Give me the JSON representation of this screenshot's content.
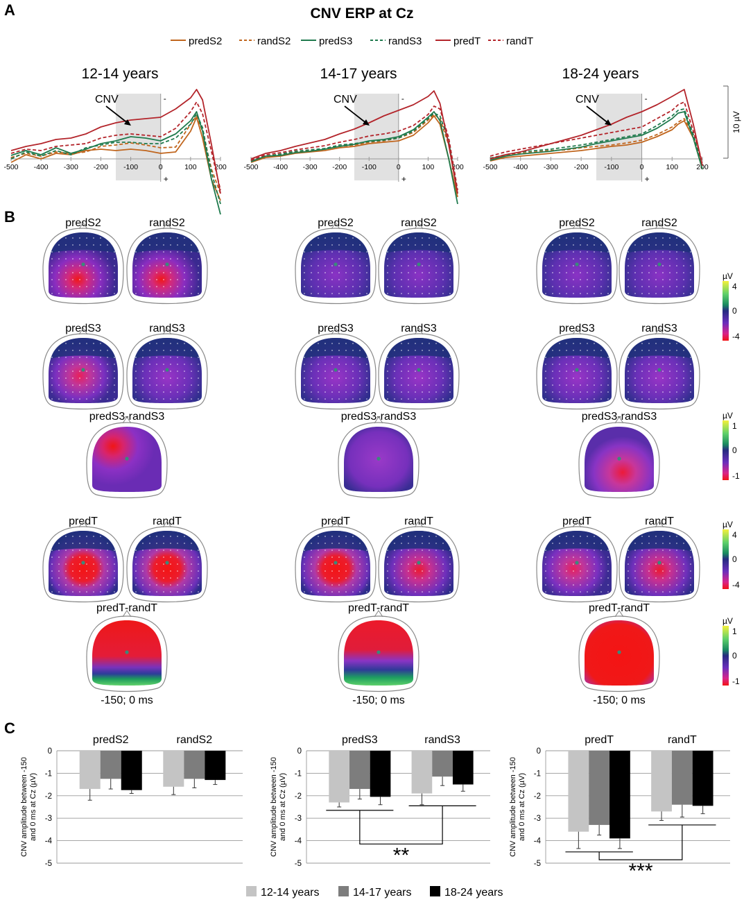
{
  "panel_labels": {
    "a": "A",
    "b": "B",
    "c": "C"
  },
  "colors": {
    "predS2": "#c0651d",
    "randS2": "#c0651d",
    "predS3": "#1f7a4d",
    "randS3": "#1f7a4d",
    "predT": "#b3242a",
    "randT": "#b3242a",
    "bar12": "#c4c4c4",
    "bar14": "#7d7d7d",
    "bar18": "#000000",
    "cnv_window": "#e1e1e1"
  },
  "panelA": {
    "title": "CNV ERP at Cz",
    "legend": [
      {
        "key": "predS2",
        "label": "predS2",
        "dashed": false
      },
      {
        "key": "randS2",
        "label": "randS2",
        "dashed": true
      },
      {
        "key": "predS3",
        "label": "predS3",
        "dashed": false
      },
      {
        "key": "randS3",
        "label": "randS3",
        "dashed": true
      },
      {
        "key": "predT",
        "label": "predT",
        "dashed": false
      },
      {
        "key": "randT",
        "label": "randT",
        "dashed": true
      }
    ],
    "cnv_label": "CNV",
    "minus_sign": "-",
    "plus_sign": "+",
    "scale_bar_label": "10 µV",
    "chart_data": [
      {
        "type": "line",
        "title": "12-14 years",
        "xlabel": "",
        "ylabel": "",
        "xlim": [
          -500,
          200
        ],
        "ylim": [
          -9,
          11
        ],
        "x_ticks": [
          -500,
          -400,
          -300,
          -200,
          -100,
          0,
          100,
          200
        ],
        "cnv_window": [
          -150,
          0
        ],
        "x": [
          -500,
          -450,
          -400,
          -350,
          -300,
          -250,
          -200,
          -150,
          -100,
          -50,
          0,
          50,
          100,
          120,
          140,
          170,
          200
        ],
        "series": [
          {
            "name": "predS2",
            "values": [
              -0.5,
              0.6,
              0.0,
              0.8,
              0.6,
              1.2,
              1.4,
              1.2,
              1.4,
              1.2,
              0.8,
              1.0,
              4.0,
              6.0,
              3.0,
              -3.0,
              -6.0
            ]
          },
          {
            "name": "randS2",
            "values": [
              0.2,
              0.8,
              0.4,
              1.0,
              0.8,
              1.0,
              1.8,
              2.0,
              2.3,
              2.0,
              1.6,
              1.7,
              5.0,
              6.2,
              4.0,
              -1.5,
              -5.0
            ]
          },
          {
            "name": "predS3",
            "values": [
              0.5,
              1.2,
              0.6,
              1.6,
              0.8,
              1.4,
              2.2,
              2.6,
              3.2,
              3.0,
              2.6,
              3.6,
              5.5,
              6.8,
              4.0,
              -3.0,
              -8.0
            ]
          },
          {
            "name": "randS3",
            "values": [
              0.0,
              1.0,
              0.4,
              1.2,
              0.6,
              1.6,
              2.0,
              2.4,
              2.4,
              2.2,
              2.2,
              3.0,
              5.0,
              6.5,
              4.5,
              -2.0,
              -6.5
            ]
          },
          {
            "name": "predT",
            "values": [
              1.2,
              1.8,
              2.2,
              2.8,
              3.0,
              3.6,
              4.6,
              5.2,
              5.6,
              5.8,
              6.0,
              7.2,
              8.8,
              10.0,
              8.5,
              2.0,
              -5.0
            ]
          },
          {
            "name": "randT",
            "values": [
              0.8,
              1.4,
              1.2,
              1.8,
              2.0,
              2.2,
              3.0,
              3.4,
              3.6,
              3.4,
              3.2,
              4.4,
              6.8,
              8.2,
              6.5,
              1.0,
              -4.5
            ]
          }
        ]
      },
      {
        "type": "line",
        "title": "14-17 years",
        "xlabel": "",
        "ylabel": "",
        "xlim": [
          -500,
          200
        ],
        "ylim": [
          -9,
          11
        ],
        "x_ticks": [
          -500,
          -400,
          -300,
          -200,
          -100,
          0,
          100,
          200
        ],
        "cnv_window": [
          -150,
          0
        ],
        "x": [
          -500,
          -450,
          -400,
          -350,
          -300,
          -250,
          -200,
          -150,
          -100,
          -50,
          0,
          50,
          100,
          120,
          140,
          170,
          200
        ],
        "series": [
          {
            "name": "predS2",
            "values": [
              -0.5,
              0.2,
              0.4,
              0.8,
              1.0,
              1.2,
              1.6,
              1.8,
              2.2,
              2.4,
              2.6,
              3.4,
              5.2,
              6.2,
              5.0,
              0.0,
              -5.5
            ]
          },
          {
            "name": "randS2",
            "values": [
              -0.3,
              0.3,
              0.6,
              1.0,
              1.2,
              1.4,
              1.8,
              2.0,
              2.4,
              2.6,
              3.0,
              3.8,
              5.6,
              6.4,
              5.8,
              2.0,
              -5.0
            ]
          },
          {
            "name": "predS3",
            "values": [
              -0.4,
              0.4,
              0.5,
              0.9,
              1.1,
              1.4,
              1.8,
              2.1,
              2.6,
              2.8,
              3.2,
              4.2,
              6.0,
              6.8,
              5.5,
              0.0,
              -6.5
            ]
          },
          {
            "name": "randS3",
            "values": [
              -0.2,
              0.4,
              0.7,
              1.1,
              1.3,
              1.5,
              2.0,
              2.2,
              2.5,
              2.7,
              3.0,
              4.0,
              5.8,
              6.6,
              6.2,
              2.5,
              -5.0
            ]
          },
          {
            "name": "predT",
            "values": [
              0.0,
              0.8,
              1.2,
              1.8,
              2.3,
              2.8,
              3.6,
              4.3,
              5.2,
              6.2,
              7.0,
              7.8,
              9.0,
              9.8,
              8.0,
              2.0,
              -5.0
            ]
          },
          {
            "name": "randT",
            "values": [
              -0.2,
              0.6,
              0.9,
              1.3,
              1.6,
              1.9,
              2.4,
              2.8,
              3.3,
              3.6,
              4.0,
              4.8,
              6.4,
              7.6,
              7.2,
              3.0,
              -4.5
            ]
          }
        ]
      },
      {
        "type": "line",
        "title": "18-24 years",
        "xlabel": "",
        "ylabel": "",
        "xlim": [
          -500,
          200
        ],
        "ylim": [
          -9,
          11
        ],
        "x_ticks": [
          -500,
          -400,
          -300,
          -200,
          -100,
          0,
          100,
          200
        ],
        "cnv_window": [
          -150,
          0
        ],
        "x": [
          -500,
          -450,
          -400,
          -350,
          -300,
          -250,
          -200,
          -150,
          -100,
          -50,
          0,
          50,
          100,
          120,
          140,
          170,
          200
        ],
        "series": [
          {
            "name": "predS2",
            "values": [
              -0.3,
              0.2,
              0.4,
              0.6,
              0.8,
              1.0,
              1.2,
              1.5,
              1.8,
              2.0,
              2.4,
              3.2,
              4.2,
              5.0,
              5.5,
              3.0,
              -1.5
            ]
          },
          {
            "name": "randS2",
            "values": [
              0.0,
              0.5,
              0.8,
              1.0,
              1.2,
              1.3,
              1.6,
              1.8,
              2.0,
              2.3,
              2.7,
              3.5,
              4.6,
              5.3,
              5.8,
              3.5,
              -1.0
            ]
          },
          {
            "name": "predS3",
            "values": [
              -0.2,
              0.4,
              0.7,
              0.9,
              1.1,
              1.4,
              1.7,
              2.2,
              2.6,
              3.0,
              3.4,
              4.4,
              5.8,
              6.6,
              6.8,
              3.0,
              -1.5
            ]
          },
          {
            "name": "randS3",
            "values": [
              0.1,
              0.6,
              1.0,
              1.2,
              1.4,
              1.7,
              2.0,
              2.4,
              2.8,
              3.2,
              3.6,
              4.8,
              6.2,
              7.0,
              7.2,
              3.5,
              -1.0
            ]
          },
          {
            "name": "predT",
            "values": [
              0.0,
              0.6,
              1.0,
              1.6,
              2.2,
              2.8,
              3.4,
              4.2,
              5.0,
              6.0,
              6.8,
              7.8,
              9.0,
              9.5,
              10.0,
              5.0,
              -1.0
            ]
          },
          {
            "name": "randT",
            "values": [
              0.4,
              1.0,
              1.4,
              1.8,
              2.2,
              2.6,
              3.0,
              3.4,
              3.8,
              4.2,
              4.6,
              5.8,
              7.0,
              7.8,
              8.2,
              4.0,
              -0.5
            ]
          }
        ]
      }
    ]
  },
  "panelB": {
    "groups": [
      {
        "pair1": [
          "predS2",
          "randS2"
        ],
        "pair2": [
          "predS3",
          "randS3"
        ],
        "diff1": "predS3-randS3",
        "pair3": [
          "predT",
          "randT"
        ],
        "diff2": "predT-randT",
        "window": "-150; 0 ms",
        "maps": {
          "predS2": "posterior-strong",
          "randS2": "posterior-strong",
          "predS3": "central-strong",
          "randS3": "central-weak",
          "diff1": "left-frontal",
          "predT": "central-broad",
          "randT": "central-broad",
          "diff2": "diff-broad-green"
        }
      },
      {
        "pair1": [
          "predS2",
          "randS2"
        ],
        "pair2": [
          "predS3",
          "randS3"
        ],
        "diff1": "predS3-randS3",
        "pair3": [
          "predT",
          "randT"
        ],
        "diff2": "predT-randT",
        "window": "-150; 0 ms",
        "maps": {
          "predS2": "weak",
          "randS2": "weak",
          "predS3": "central-weak",
          "randS3": "central-weak",
          "diff1": "diffuse",
          "predT": "central-broad",
          "randT": "central-medium",
          "diff2": "diff-frontal-green"
        }
      },
      {
        "pair1": [
          "predS2",
          "randS2"
        ],
        "pair2": [
          "predS3",
          "randS3"
        ],
        "diff1": "predS3-randS3",
        "pair3": [
          "predT",
          "randT"
        ],
        "diff2": "predT-randT",
        "window": "-150; 0 ms",
        "maps": {
          "predS2": "weak",
          "randS2": "weak",
          "predS3": "central-weak",
          "randS3": "central-weak",
          "diff1": "posterior-red",
          "predT": "central-strong",
          "randT": "central-medium",
          "diff2": "diff-all-red"
        }
      }
    ],
    "colorbars": [
      {
        "unit": "µV",
        "ticks": [
          "4",
          "0",
          "-4"
        ]
      },
      {
        "unit": "µV",
        "ticks": [
          "1",
          "0",
          "-1"
        ]
      },
      {
        "unit": "µV",
        "ticks": [
          "4",
          "0",
          "-4"
        ]
      },
      {
        "unit": "µV",
        "ticks": [
          "1",
          "0",
          "-1"
        ]
      }
    ]
  },
  "panelC": {
    "ylabel_line1": "CNV amplitude between -150",
    "ylabel_line2": "and 0 ms at Cz (µV)",
    "legend": [
      "12-14 years",
      "14-17 years",
      "18-24 years"
    ],
    "significance": [
      "**",
      "***"
    ],
    "chart_data": [
      {
        "type": "bar",
        "categories": [
          "predS2",
          "randS2"
        ],
        "ylim": [
          -5,
          0
        ],
        "y_ticks": [
          0,
          -1,
          -2,
          -3,
          -4,
          -5
        ],
        "series": [
          {
            "name": "12-14 years",
            "values": [
              -1.7,
              -1.6
            ],
            "errors": [
              0.5,
              0.35
            ]
          },
          {
            "name": "14-17 years",
            "values": [
              -1.25,
              -1.25
            ],
            "errors": [
              0.45,
              0.4
            ]
          },
          {
            "name": "18-24 years",
            "values": [
              -1.75,
              -1.3
            ],
            "errors": [
              0.15,
              0.2
            ]
          }
        ],
        "significance": null
      },
      {
        "type": "bar",
        "categories": [
          "predS3",
          "randS3"
        ],
        "ylim": [
          -5,
          0
        ],
        "y_ticks": [
          0,
          -1,
          -2,
          -3,
          -4,
          -5
        ],
        "series": [
          {
            "name": "12-14 years",
            "values": [
              -2.3,
              -1.9
            ],
            "errors": [
              0.2,
              0.5
            ]
          },
          {
            "name": "14-17 years",
            "values": [
              -1.7,
              -1.15
            ],
            "errors": [
              0.45,
              0.4
            ]
          },
          {
            "name": "18-24 years",
            "values": [
              -2.05,
              -1.5
            ],
            "errors": [
              0.35,
              0.3
            ]
          }
        ],
        "significance": {
          "label": "**",
          "left_y": -2.65,
          "right_y": -2.45,
          "join_y": -4.15
        }
      },
      {
        "type": "bar",
        "categories": [
          "predT",
          "randT"
        ],
        "ylim": [
          -5,
          0
        ],
        "y_ticks": [
          0,
          -1,
          -2,
          -3,
          -4,
          -5
        ],
        "series": [
          {
            "name": "12-14 years",
            "values": [
              -3.6,
              -2.7
            ],
            "errors": [
              0.75,
              0.4
            ]
          },
          {
            "name": "14-17 years",
            "values": [
              -3.3,
              -2.4
            ],
            "errors": [
              0.45,
              0.55
            ]
          },
          {
            "name": "18-24 years",
            "values": [
              -3.9,
              -2.45
            ],
            "errors": [
              0.45,
              0.35
            ]
          }
        ],
        "significance": {
          "label": "***",
          "left_y": -4.5,
          "right_y": -3.3,
          "join_y": -4.85
        }
      }
    ]
  }
}
